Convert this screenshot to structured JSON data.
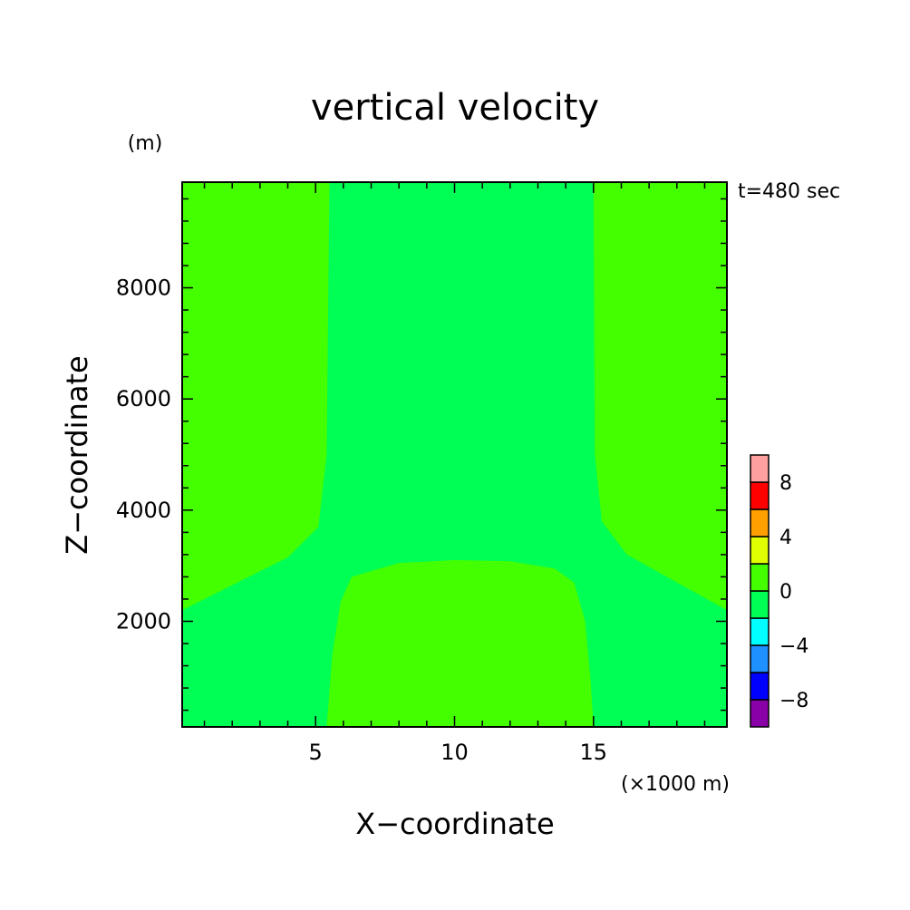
{
  "chart_data": {
    "type": "heatmap",
    "title": "vertical velocity",
    "xlabel": "X−coordinate",
    "ylabel": "Z−coordinate",
    "x_unit": "(×1000 m)",
    "y_unit": "(m)",
    "time_label": "t=480 sec",
    "xlim": [
      0.2,
      19.8
    ],
    "ylim": [
      100,
      9900
    ],
    "x_ticks": [
      {
        "value": 5,
        "label": "5"
      },
      {
        "value": 10,
        "label": "10"
      },
      {
        "value": 15,
        "label": "15"
      }
    ],
    "y_ticks": [
      {
        "value": 2000,
        "label": "2000"
      },
      {
        "value": 4000,
        "label": "4000"
      },
      {
        "value": 6000,
        "label": "6000"
      },
      {
        "value": 8000,
        "label": "8000"
      }
    ],
    "grid": false,
    "colorbar": {
      "position": "right",
      "levels": [
        -10,
        -8,
        -6,
        -4,
        -2,
        0,
        2,
        4,
        6,
        8,
        10
      ],
      "colors": [
        "#8a00a8",
        "#0000ff",
        "#1e90ff",
        "#00ffff",
        "#00ff55",
        "#44ff00",
        "#e0ff00",
        "#ffa000",
        "#ff0000",
        "#ffa0a0"
      ],
      "labels": [
        {
          "value": -8,
          "label": "−8"
        },
        {
          "value": -4,
          "label": "−4"
        },
        {
          "value": 0,
          "label": "0"
        },
        {
          "value": 4,
          "label": "4"
        },
        {
          "value": 8,
          "label": "8"
        }
      ]
    },
    "regions": [
      {
        "level_range": [
          0,
          2
        ],
        "color": "#44ff00",
        "boundary": [
          [
            0.2,
            2200
          ],
          [
            2,
            2650
          ],
          [
            4,
            3150
          ],
          [
            5.1,
            3700
          ],
          [
            5.4,
            5000
          ],
          [
            5.5,
            9900
          ],
          [
            0.2,
            9900
          ]
        ]
      },
      {
        "level_range": [
          0,
          2
        ],
        "color": "#44ff00",
        "boundary": [
          [
            15,
            9900
          ],
          [
            15.05,
            5000
          ],
          [
            15.3,
            3800
          ],
          [
            16.2,
            3200
          ],
          [
            18,
            2700
          ],
          [
            19.8,
            2200
          ],
          [
            19.8,
            9900
          ]
        ]
      },
      {
        "level_range": [
          0,
          2
        ],
        "color": "#44ff00",
        "boundary": [
          [
            5.4,
            100
          ],
          [
            5.6,
            1400
          ],
          [
            5.9,
            2350
          ],
          [
            6.3,
            2800
          ],
          [
            8,
            3050
          ],
          [
            10,
            3100
          ],
          [
            12,
            3080
          ],
          [
            13.6,
            2950
          ],
          [
            14.3,
            2700
          ],
          [
            14.7,
            2000
          ],
          [
            14.9,
            900
          ],
          [
            15,
            100
          ]
        ]
      }
    ]
  }
}
